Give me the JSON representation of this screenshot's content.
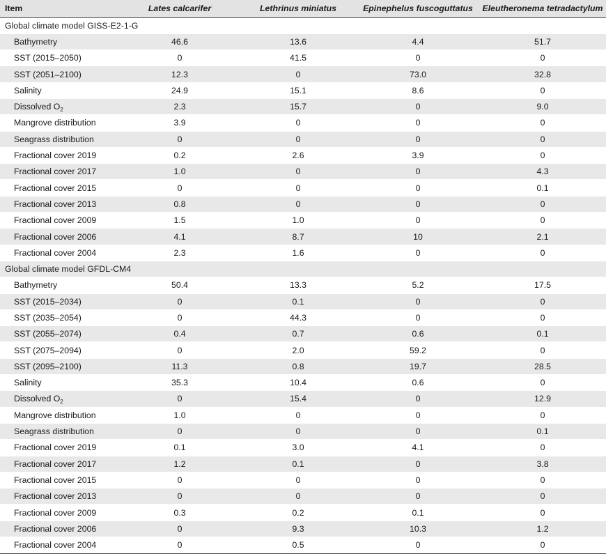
{
  "table": {
    "headers": [
      "Item",
      "Lates calcarifer",
      "Lethrinus miniatus",
      "Epinephelus fuscoguttatus",
      "Eleutheronema tetradactylum"
    ],
    "sections": [
      {
        "title": "Global climate model GISS-E2-1-G",
        "rows": [
          {
            "label": "Bathymetry",
            "values": [
              "46.6",
              "13.6",
              "4.4",
              "51.7"
            ]
          },
          {
            "label": "SST (2015–2050)",
            "values": [
              "0",
              "41.5",
              "0",
              "0"
            ]
          },
          {
            "label": "SST (2051–2100)",
            "values": [
              "12.3",
              "0",
              "73.0",
              "32.8"
            ]
          },
          {
            "label": "Salinity",
            "values": [
              "24.9",
              "15.1",
              "8.6",
              "0"
            ]
          },
          {
            "label": "Dissolved O",
            "sub": "2",
            "values": [
              "2.3",
              "15.7",
              "0",
              "9.0"
            ]
          },
          {
            "label": "Mangrove distribution",
            "values": [
              "3.9",
              "0",
              "0",
              "0"
            ]
          },
          {
            "label": "Seagrass distribution",
            "values": [
              "0",
              "0",
              "0",
              "0"
            ]
          },
          {
            "label": "Fractional cover 2019",
            "values": [
              "0.2",
              "2.6",
              "3.9",
              "0"
            ]
          },
          {
            "label": "Fractional cover 2017",
            "values": [
              "1.0",
              "0",
              "0",
              "4.3"
            ]
          },
          {
            "label": "Fractional cover 2015",
            "values": [
              "0",
              "0",
              "0",
              "0.1"
            ]
          },
          {
            "label": "Fractional cover 2013",
            "values": [
              "0.8",
              "0",
              "0",
              "0"
            ]
          },
          {
            "label": "Fractional cover 2009",
            "values": [
              "1.5",
              "1.0",
              "0",
              "0"
            ]
          },
          {
            "label": "Fractional cover 2006",
            "values": [
              "4.1",
              "8.7",
              "10",
              "2.1"
            ]
          },
          {
            "label": "Fractional cover 2004",
            "values": [
              "2.3",
              "1.6",
              "0",
              "0"
            ]
          }
        ]
      },
      {
        "title": "Global climate model GFDL-CM4",
        "rows": [
          {
            "label": "Bathymetry",
            "values": [
              "50.4",
              "13.3",
              "5.2",
              "17.5"
            ]
          },
          {
            "label": "SST (2015–2034)",
            "values": [
              "0",
              "0.1",
              "0",
              "0"
            ]
          },
          {
            "label": "SST (2035–2054)",
            "values": [
              "0",
              "44.3",
              "0",
              "0"
            ]
          },
          {
            "label": "SST (2055–2074)",
            "values": [
              "0.4",
              "0.7",
              "0.6",
              "0.1"
            ]
          },
          {
            "label": "SST (2075–2094)",
            "values": [
              "0",
              "2.0",
              "59.2",
              "0"
            ]
          },
          {
            "label": "SST (2095–2100)",
            "values": [
              "11.3",
              "0.8",
              "19.7",
              "28.5"
            ]
          },
          {
            "label": "Salinity",
            "values": [
              "35.3",
              "10.4",
              "0.6",
              "0"
            ]
          },
          {
            "label": "Dissolved O",
            "sub": "2",
            "values": [
              "0",
              "15.4",
              "0",
              "12.9"
            ]
          },
          {
            "label": "Mangrove distribution",
            "values": [
              "1.0",
              "0",
              "0",
              "0"
            ]
          },
          {
            "label": "Seagrass distribution",
            "values": [
              "0",
              "0",
              "0",
              "0.1"
            ]
          },
          {
            "label": "Fractional cover 2019",
            "values": [
              "0.1",
              "3.0",
              "4.1",
              "0"
            ]
          },
          {
            "label": "Fractional cover 2017",
            "values": [
              "1.2",
              "0.1",
              "0",
              "3.8"
            ]
          },
          {
            "label": "Fractional cover 2015",
            "values": [
              "0",
              "0",
              "0",
              "0"
            ]
          },
          {
            "label": "Fractional cover 2013",
            "values": [
              "0",
              "0",
              "0",
              "0"
            ]
          },
          {
            "label": "Fractional cover 2009",
            "values": [
              "0.3",
              "0.2",
              "0.1",
              "0"
            ]
          },
          {
            "label": "Fractional cover 2006",
            "values": [
              "0",
              "9.3",
              "10.3",
              "1.2"
            ]
          },
          {
            "label": "Fractional cover 2004",
            "values": [
              "0",
              "0.5",
              "0",
              "0"
            ]
          }
        ]
      }
    ]
  },
  "colors": {
    "header_bg": "#e3e3e3",
    "stripe_bg": "#e8e8e8",
    "text": "#1a1a1a"
  }
}
